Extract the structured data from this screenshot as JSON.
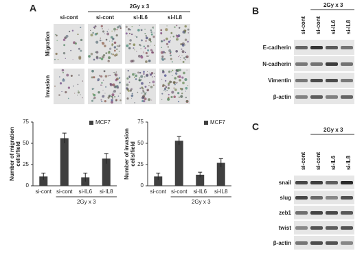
{
  "panels": {
    "A": {
      "label": "A",
      "treatment": "2Gy x 3",
      "columns": [
        "si-cont",
        "si-cont",
        "si-IL6",
        "si-IL8"
      ],
      "rows": [
        "Migration",
        "Invasion"
      ]
    },
    "B": {
      "label": "B",
      "treatment": "2Gy x 3",
      "columns": [
        "si-cont",
        "si-cont",
        "si-IL6",
        "si-IL8"
      ],
      "rows": [
        "E-cadherin",
        "N-cadherin",
        "Vimentin",
        "β-actin"
      ]
    },
    "C": {
      "label": "C",
      "treatment": "2Gy x 3",
      "columns": [
        "si-cont",
        "si-cont",
        "si-IL6",
        "si-IL8"
      ],
      "rows": [
        "snail",
        "slug",
        "zeb1",
        "twist",
        "β-actin"
      ]
    }
  },
  "chart_data": [
    {
      "type": "bar",
      "y_label": [
        "Number of migration",
        "cells/field"
      ],
      "categories": [
        "si-cont",
        "si-cont",
        "si-IL6",
        "si-IL8"
      ],
      "group_label": "2Gy x 3",
      "series": [
        {
          "name": "MCF7",
          "color": "#404040",
          "values": [
            11,
            56,
            10,
            32
          ],
          "errors": [
            4,
            6,
            5,
            6
          ]
        }
      ],
      "ylim": [
        0,
        75
      ],
      "yticks": [
        0,
        25,
        50,
        75
      ]
    },
    {
      "type": "bar",
      "y_label": [
        "Number of invasion",
        "cells/field"
      ],
      "categories": [
        "si-cont",
        "si-cont",
        "si-IL6",
        "si-IL8"
      ],
      "group_label": "2Gy x 3",
      "series": [
        {
          "name": "MCF7",
          "color": "#404040",
          "values": [
            11,
            53,
            13,
            27
          ],
          "errors": [
            4,
            5,
            3,
            5
          ]
        }
      ],
      "ylim": [
        0,
        75
      ],
      "yticks": [
        0,
        25,
        50,
        75
      ]
    }
  ]
}
